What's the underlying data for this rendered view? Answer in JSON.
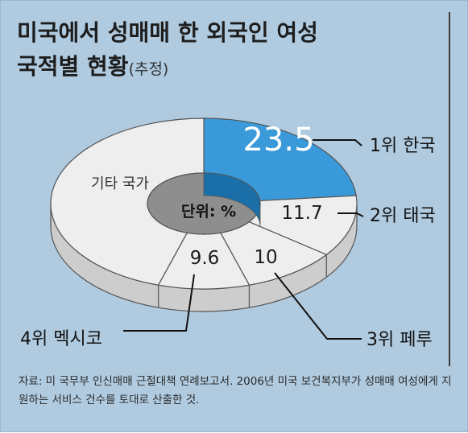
{
  "header": {
    "title_line1": "미국에서 성매매 한 외국인 여성",
    "title_line2": "국적별 현황",
    "title_note": "(추정)"
  },
  "chart_data": {
    "type": "pie",
    "style": "3d-donut",
    "unit_label": "단위: %",
    "slices": [
      {
        "rank_label": "1위 한국",
        "value": 23.5,
        "value_label": "23.5",
        "color": "#3a9ad9"
      },
      {
        "rank_label": "2위 태국",
        "value": 11.7,
        "value_label": "11.7",
        "color": "#eeeeee"
      },
      {
        "rank_label": "3위 페루",
        "value": 10,
        "value_label": "10",
        "color": "#eeeeee"
      },
      {
        "rank_label": "4위 멕시코",
        "value": 9.6,
        "value_label": "9.6",
        "color": "#eeeeee"
      },
      {
        "rank_label": "기타 국가",
        "value": 45.2,
        "value_label": "",
        "color": "#eeeeee"
      }
    ],
    "colors": {
      "highlight": "#3a9ad9",
      "base": "#eeeeee",
      "hole": "#9a9a9a",
      "background": "#b0cbe0"
    }
  },
  "source": {
    "text": "자료: 미 국무부 인신매매 근절대책 연례보고서. 2006년 미국 보건복지부가 성매매 여성에게 지원하는 서비스 건수를 토대로 산출한 것."
  }
}
